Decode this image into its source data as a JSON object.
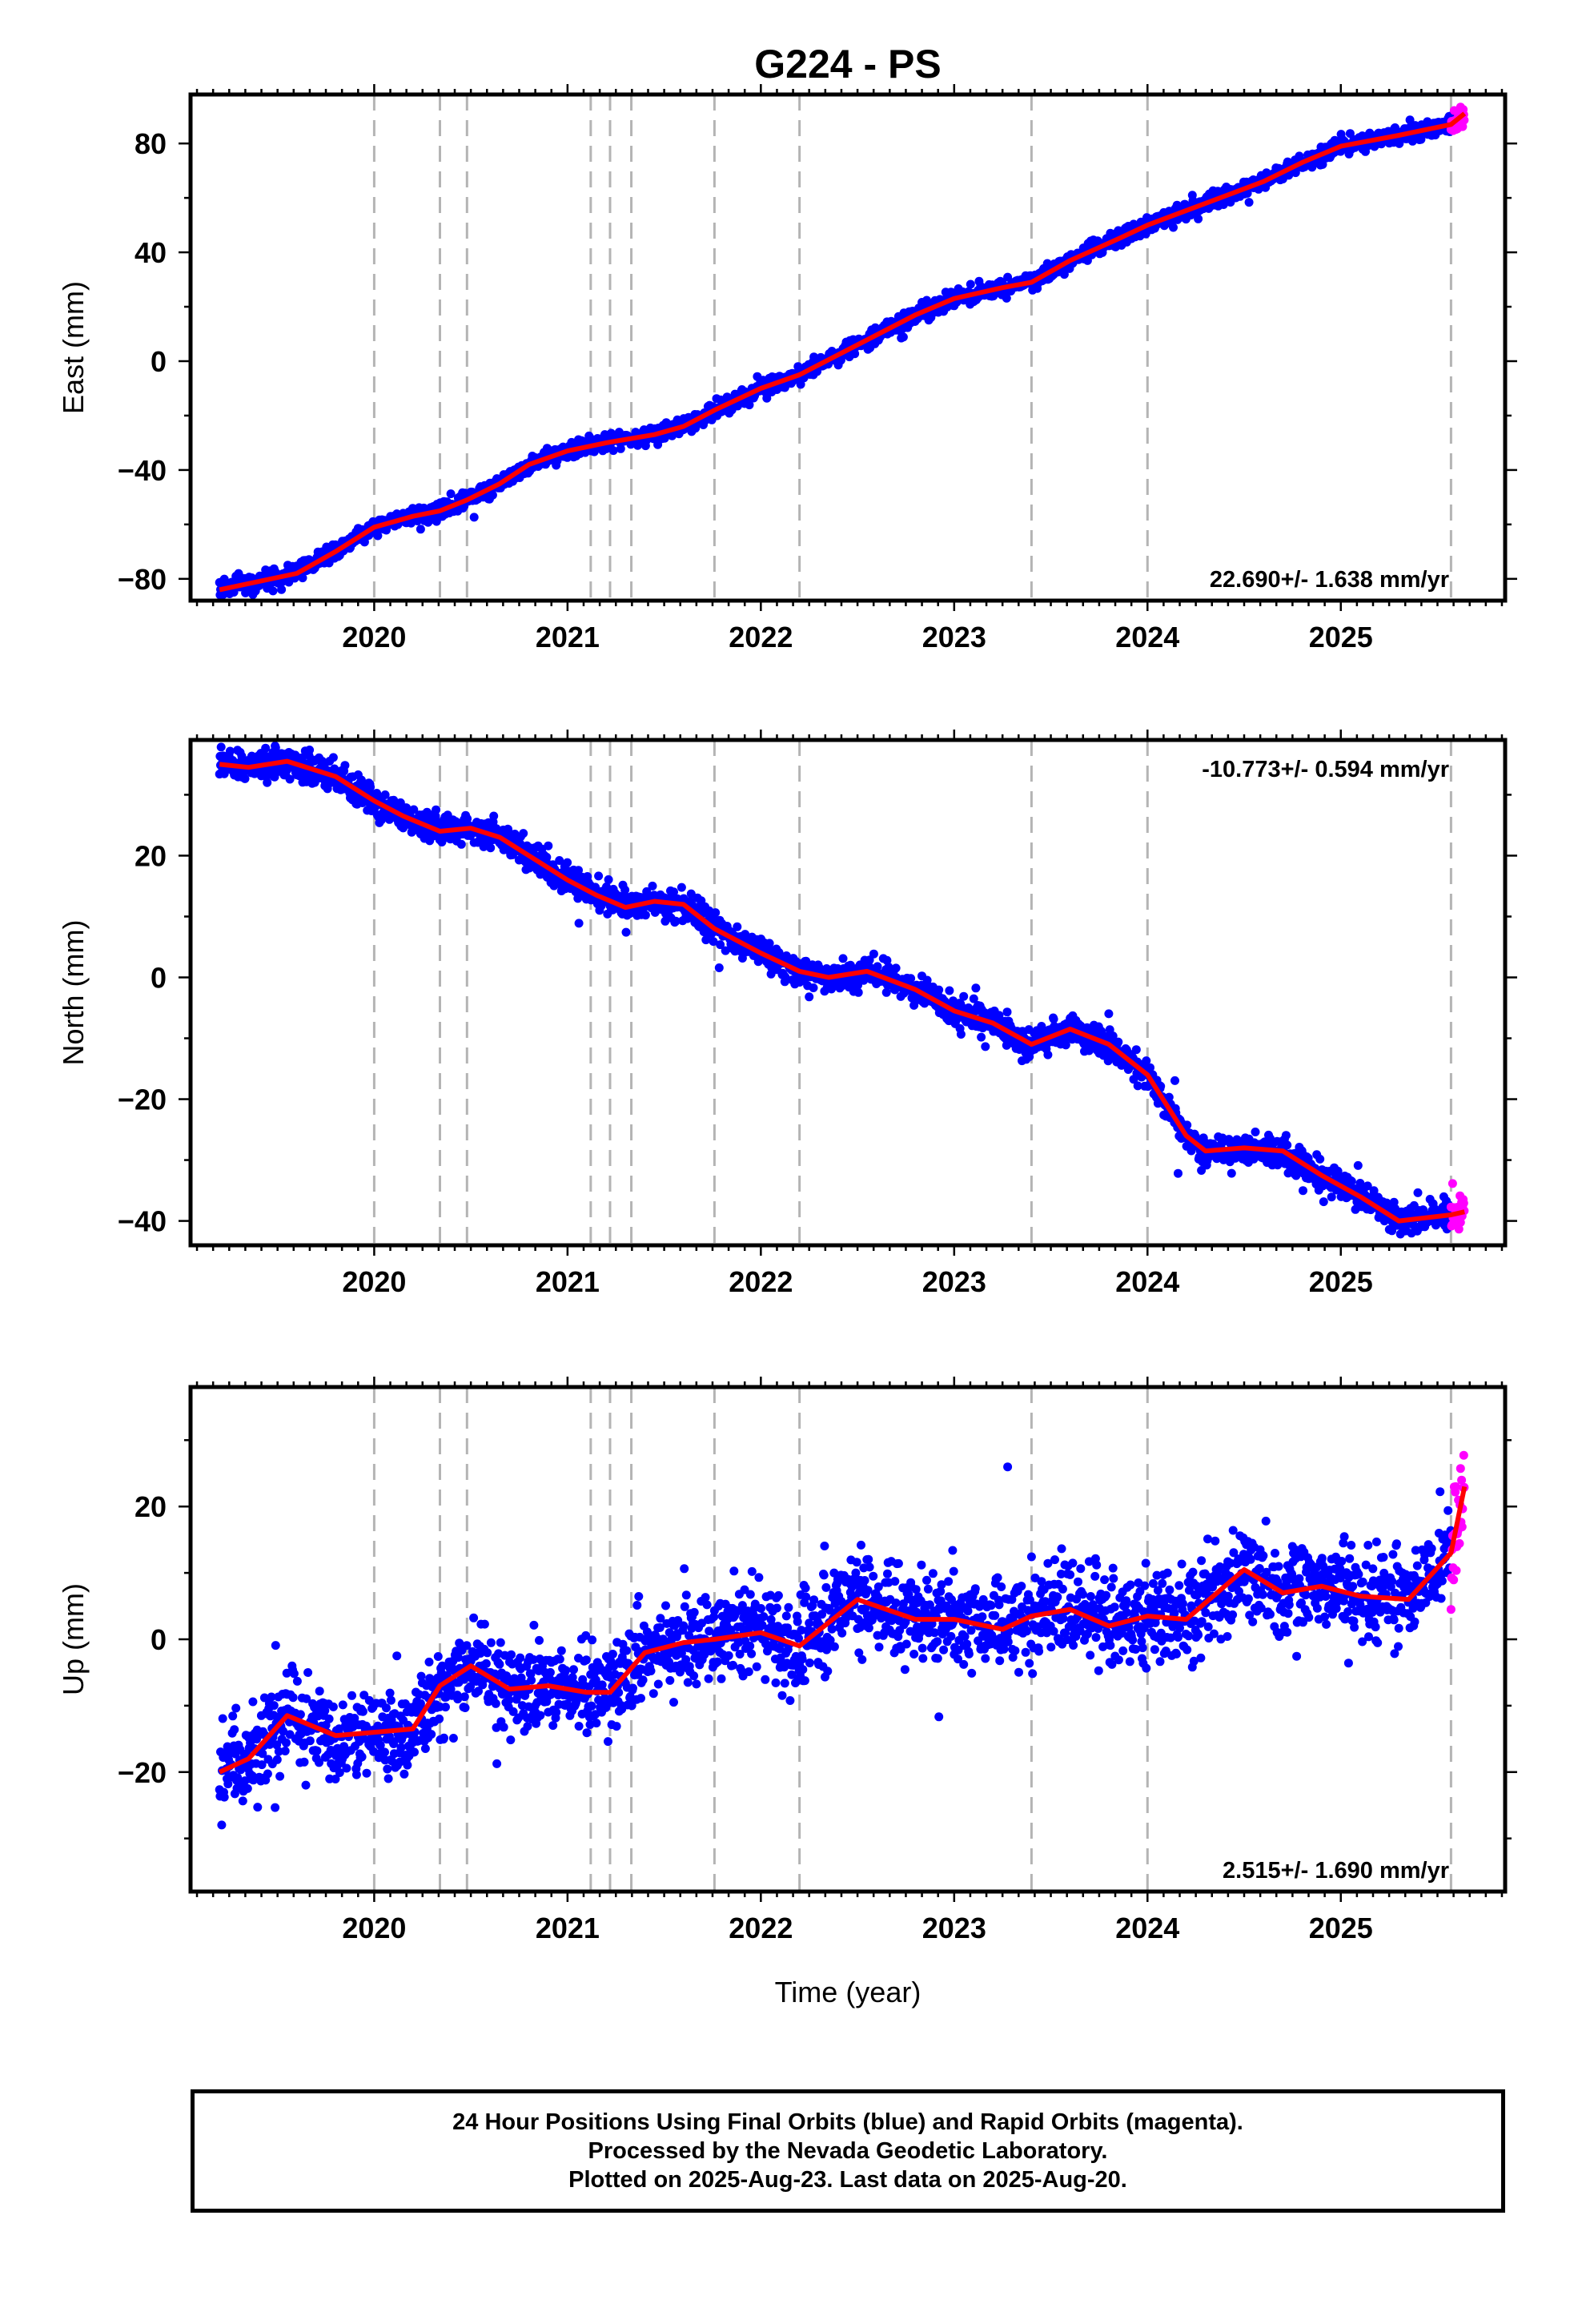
{
  "chart_data": {
    "title": "G224 - PS",
    "type": "scatter",
    "xlabel": "Time (year)",
    "xlim": [
      2019.05,
      2025.85
    ],
    "x_ticks": [
      2020,
      2021,
      2022,
      2023,
      2024,
      2025
    ],
    "x_tick_labels": [
      "2020",
      "2021",
      "2022",
      "2023",
      "2024",
      "2025"
    ],
    "data_start": 2019.2,
    "data_end": 2025.64,
    "rapid_start": 2025.57,
    "equipment_changes": [
      2020.0,
      2020.34,
      2020.48,
      2021.12,
      2021.22,
      2021.33,
      2021.76,
      2022.2,
      2023.4,
      2024.0,
      2025.57
    ],
    "colors": {
      "final": "#0000ff",
      "rapid": "#ff00ff",
      "model": "#ff0000",
      "event": "#b4b4b4"
    },
    "panels": [
      {
        "name": "east",
        "ylabel": "East (mm)",
        "ylim": [
          -88,
          98
        ],
        "y_ticks": [
          -80,
          -40,
          0,
          40,
          80
        ],
        "y_tick_labels": [
          "−80",
          "−40",
          "0",
          "40",
          "80"
        ],
        "rate": "22.690+/- 1.638 mm/yr",
        "rate_position": "bottom-right",
        "noise_mm": 1.5,
        "model": {
          "x": [
            2019.2,
            2019.6,
            2019.8,
            2020.0,
            2020.2,
            2020.34,
            2020.48,
            2020.65,
            2020.8,
            2021.0,
            2021.2,
            2021.45,
            2021.6,
            2021.76,
            2022.0,
            2022.2,
            2022.5,
            2022.8,
            2023.0,
            2023.25,
            2023.4,
            2023.6,
            2023.85,
            2024.0,
            2024.3,
            2024.6,
            2024.8,
            2025.0,
            2025.3,
            2025.57,
            2025.64
          ],
          "y": [
            -84,
            -78,
            -70,
            -61,
            -57,
            -55,
            -51,
            -45,
            -38,
            -33,
            -30,
            -27,
            -24,
            -18,
            -10,
            -5,
            6,
            17,
            23,
            27,
            29,
            37,
            45,
            50,
            58,
            66,
            73,
            79,
            83,
            87,
            91
          ]
        }
      },
      {
        "name": "north",
        "ylabel": "North (mm)",
        "ylim": [
          -44,
          39
        ],
        "y_ticks": [
          -40,
          -20,
          0,
          20
        ],
        "y_tick_labels": [
          "−40",
          "−20",
          "0",
          "20"
        ],
        "rate": "-10.773+/- 0.594 mm/yr",
        "rate_position": "top-right",
        "noise_mm": 1.2,
        "model": {
          "x": [
            2019.2,
            2019.35,
            2019.55,
            2019.8,
            2020.0,
            2020.15,
            2020.34,
            2020.5,
            2020.65,
            2020.85,
            2021.0,
            2021.15,
            2021.3,
            2021.45,
            2021.6,
            2021.76,
            2022.0,
            2022.2,
            2022.35,
            2022.55,
            2022.8,
            2023.0,
            2023.2,
            2023.4,
            2023.6,
            2023.8,
            2024.0,
            2024.2,
            2024.3,
            2024.5,
            2024.7,
            2024.9,
            2025.1,
            2025.3,
            2025.57,
            2025.64
          ],
          "y": [
            35,
            34.5,
            35.5,
            33,
            29,
            26.5,
            24,
            24.5,
            23,
            19,
            16,
            13.5,
            11.5,
            12.5,
            12,
            8,
            4,
            1,
            0,
            1,
            -2,
            -5.5,
            -7.5,
            -11,
            -8.5,
            -11,
            -16,
            -26,
            -28.5,
            -28,
            -28.5,
            -32.5,
            -36,
            -40,
            -39,
            -38.5
          ]
        }
      },
      {
        "name": "up",
        "ylabel": "Up (mm)",
        "ylim": [
          -38,
          38
        ],
        "y_ticks": [
          -20,
          0,
          20
        ],
        "y_tick_labels": [
          "−20",
          "0",
          "20"
        ],
        "rate": "2.515+/- 1.690 mm/yr",
        "rate_position": "bottom-right",
        "noise_mm": 3.4,
        "model": {
          "x": [
            2019.2,
            2019.35,
            2019.55,
            2019.8,
            2020.0,
            2020.2,
            2020.34,
            2020.5,
            2020.7,
            2020.9,
            2021.1,
            2021.22,
            2021.4,
            2021.6,
            2021.76,
            2022.0,
            2022.2,
            2022.5,
            2022.8,
            2023.0,
            2023.25,
            2023.4,
            2023.6,
            2023.8,
            2024.0,
            2024.2,
            2024.5,
            2024.7,
            2024.9,
            2025.1,
            2025.35,
            2025.57,
            2025.64
          ],
          "y": [
            -20,
            -18,
            -11.5,
            -14.5,
            -14,
            -13.5,
            -7,
            -4,
            -7.5,
            -7,
            -8,
            -8,
            -2,
            -0.5,
            0,
            1,
            -1,
            6,
            3,
            3,
            1.5,
            3.5,
            4.5,
            2,
            3.5,
            3,
            10.5,
            7,
            8,
            6.5,
            6,
            13,
            23
          ]
        }
      }
    ]
  },
  "footer": {
    "line1": "24 Hour Positions Using Final Orbits (blue) and Rapid Orbits (magenta).",
    "line2": "Processed by the Nevada Geodetic Laboratory.",
    "line3": "Plotted on 2025-Aug-23. Last data on 2025-Aug-20."
  }
}
